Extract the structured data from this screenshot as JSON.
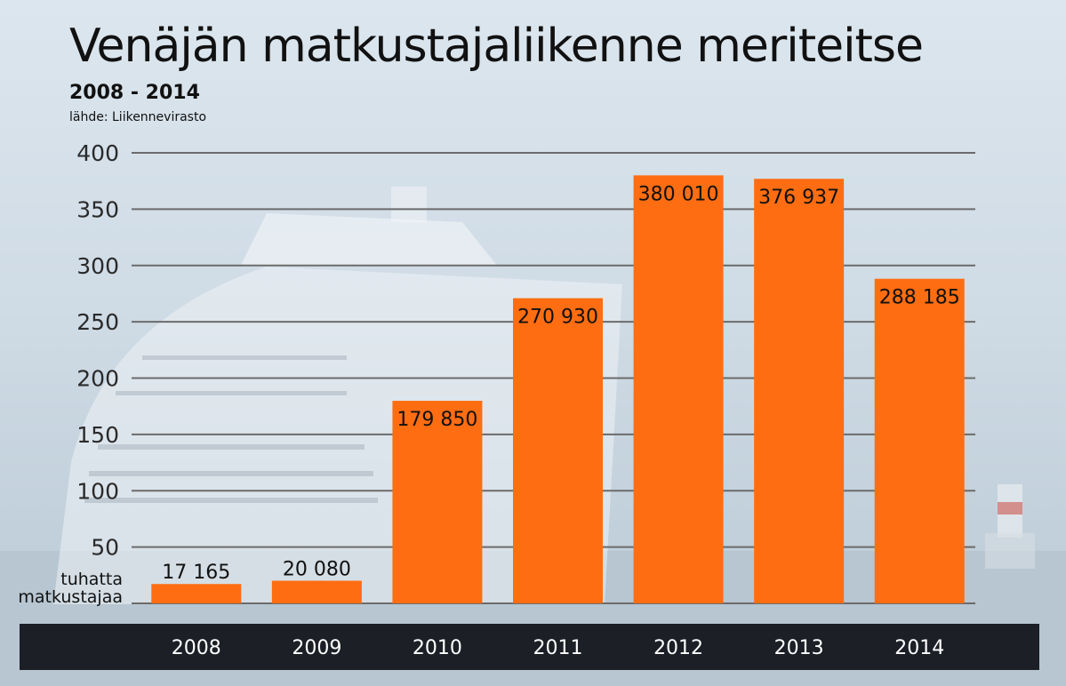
{
  "title": "Venäjän matkustajaliikenne meriteitse",
  "subtitle": "2008 - 2014",
  "source": "lähde: Liikennevirasto",
  "unit_label": [
    "tuhatta",
    "matkustajaa"
  ],
  "colors": {
    "bar": "#ff6d12",
    "grid": "#6b6b6b",
    "axis_band": "#1c1f26"
  },
  "chart_data": {
    "type": "bar",
    "categories": [
      "2008",
      "2009",
      "2010",
      "2011",
      "2012",
      "2013",
      "2014"
    ],
    "values": [
      17165,
      20080,
      179850,
      270930,
      380010,
      376937,
      288185
    ],
    "value_labels": [
      "17 165",
      "20 080",
      "179 850",
      "270 930",
      "380 010",
      "376 937",
      "288 185"
    ],
    "ylim": [
      0,
      400
    ],
    "yticks": [
      50,
      100,
      150,
      200,
      250,
      300,
      350,
      400
    ],
    "yscale_unit": "tuhatta matkustajaa",
    "grid": true
  }
}
